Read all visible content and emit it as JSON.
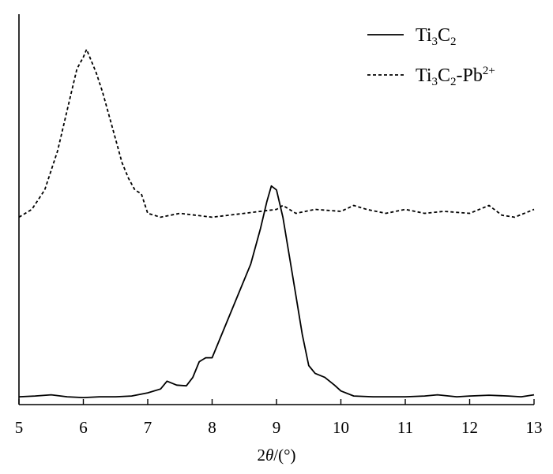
{
  "chart_data": {
    "type": "line",
    "xlabel": {
      "prefix": "2",
      "theta": "θ",
      "suffix": "/(°)"
    },
    "xlim": [
      5,
      13
    ],
    "xticks": [
      5,
      6,
      7,
      8,
      9,
      10,
      11,
      12,
      13
    ],
    "ylabel": "",
    "y_axis_ticks": false,
    "grid": false,
    "legend_position": "top-right",
    "legend": [
      {
        "series": "solid",
        "parts": [
          {
            "t": "Ti"
          },
          {
            "t": "3",
            "sub": true
          },
          {
            "t": "C"
          },
          {
            "t": "2",
            "sub": true
          }
        ]
      },
      {
        "series": "dashed",
        "parts": [
          {
            "t": "Ti"
          },
          {
            "t": "3",
            "sub": true
          },
          {
            "t": "C"
          },
          {
            "t": "2",
            "sub": true
          },
          {
            "t": "-Pb"
          },
          {
            "t": "2+",
            "sup": true
          }
        ]
      }
    ],
    "series": [
      {
        "style": "solid",
        "color": "#000000",
        "x": [
          5.0,
          5.25,
          5.5,
          5.75,
          6.0,
          6.25,
          6.5,
          6.75,
          7.0,
          7.2,
          7.3,
          7.45,
          7.6,
          7.7,
          7.8,
          7.9,
          8.0,
          8.2,
          8.4,
          8.6,
          8.75,
          8.85,
          8.92,
          9.0,
          9.1,
          9.2,
          9.3,
          9.4,
          9.5,
          9.6,
          9.75,
          9.9,
          10.0,
          10.2,
          10.5,
          10.8,
          11.0,
          11.3,
          11.5,
          11.8,
          12.0,
          12.3,
          12.6,
          12.8,
          13.0
        ],
        "y": [
          0.02,
          0.022,
          0.025,
          0.02,
          0.018,
          0.02,
          0.02,
          0.022,
          0.03,
          0.04,
          0.06,
          0.05,
          0.048,
          0.07,
          0.11,
          0.12,
          0.12,
          0.2,
          0.28,
          0.36,
          0.45,
          0.52,
          0.56,
          0.55,
          0.48,
          0.38,
          0.28,
          0.18,
          0.1,
          0.08,
          0.07,
          0.05,
          0.035,
          0.022,
          0.02,
          0.02,
          0.02,
          0.022,
          0.025,
          0.02,
          0.022,
          0.024,
          0.022,
          0.02,
          0.025
        ]
      },
      {
        "style": "dashed",
        "color": "#000000",
        "x": [
          5.0,
          5.2,
          5.4,
          5.6,
          5.8,
          5.9,
          6.0,
          6.05,
          6.1,
          6.2,
          6.3,
          6.4,
          6.5,
          6.6,
          6.7,
          6.8,
          6.9,
          7.0,
          7.2,
          7.5,
          8.0,
          8.5,
          9.0,
          9.1,
          9.3,
          9.6,
          10.0,
          10.2,
          10.4,
          10.7,
          11.0,
          11.3,
          11.6,
          12.0,
          12.3,
          12.5,
          12.7,
          13.0
        ],
        "y": [
          0.48,
          0.5,
          0.55,
          0.65,
          0.79,
          0.86,
          0.89,
          0.91,
          0.89,
          0.85,
          0.8,
          0.74,
          0.68,
          0.62,
          0.58,
          0.55,
          0.54,
          0.49,
          0.48,
          0.49,
          0.48,
          0.49,
          0.5,
          0.51,
          0.49,
          0.5,
          0.495,
          0.51,
          0.5,
          0.49,
          0.5,
          0.49,
          0.495,
          0.49,
          0.51,
          0.485,
          0.48,
          0.5
        ]
      }
    ]
  }
}
